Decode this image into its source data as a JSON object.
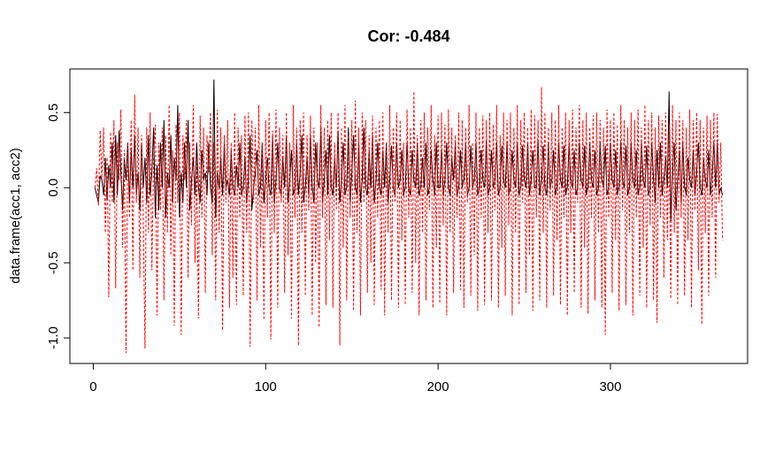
{
  "chart_data": {
    "type": "line",
    "title": "Cor: -0.484",
    "y_label": "data.frame(acc1, acc2)",
    "xlim": [
      -13.56,
      379.56
    ],
    "ylim": [
      -1.17,
      0.79
    ],
    "xticks": [
      0,
      100,
      200,
      300
    ],
    "yticks": [
      {
        "value": -1,
        "label": "-1.0"
      },
      -0.5,
      {
        "value": 0,
        "label": "0.0"
      },
      0.5
    ],
    "x": [
      1,
      2,
      3,
      4,
      5,
      6,
      7,
      8,
      9,
      10,
      11,
      12,
      13,
      14,
      15,
      16,
      17,
      18,
      19,
      20,
      21,
      22,
      23,
      24,
      25,
      26,
      27,
      28,
      29,
      30,
      31,
      32,
      33,
      34,
      35,
      36,
      37,
      38,
      39,
      40,
      41,
      42,
      43,
      44,
      45,
      46,
      47,
      48,
      49,
      50,
      51,
      52,
      53,
      54,
      55,
      56,
      57,
      58,
      59,
      60,
      61,
      62,
      63,
      64,
      65,
      66,
      67,
      68,
      69,
      70,
      71,
      72,
      73,
      74,
      75,
      76,
      77,
      78,
      79,
      80,
      81,
      82,
      83,
      84,
      85,
      86,
      87,
      88,
      89,
      90,
      91,
      92,
      93,
      94,
      95,
      96,
      97,
      98,
      99,
      100,
      101,
      102,
      103,
      104,
      105,
      106,
      107,
      108,
      109,
      110,
      111,
      112,
      113,
      114,
      115,
      116,
      117,
      118,
      119,
      120,
      121,
      122,
      123,
      124,
      125,
      126,
      127,
      128,
      129,
      130,
      131,
      132,
      133,
      134,
      135,
      136,
      137,
      138,
      139,
      140,
      141,
      142,
      143,
      144,
      145,
      146,
      147,
      148,
      149,
      150,
      151,
      152,
      153,
      154,
      155,
      156,
      157,
      158,
      159,
      160,
      161,
      162,
      163,
      164,
      165,
      166,
      167,
      168,
      169,
      170,
      171,
      172,
      173,
      174,
      175,
      176,
      177,
      178,
      179,
      180,
      181,
      182,
      183,
      184,
      185,
      186,
      187,
      188,
      189,
      190,
      191,
      192,
      193,
      194,
      195,
      196,
      197,
      198,
      199,
      200,
      201,
      202,
      203,
      204,
      205,
      206,
      207,
      208,
      209,
      210,
      211,
      212,
      213,
      214,
      215,
      216,
      217,
      218,
      219,
      220,
      221,
      222,
      223,
      224,
      225,
      226,
      227,
      228,
      229,
      230,
      231,
      232,
      233,
      234,
      235,
      236,
      237,
      238,
      239,
      240,
      241,
      242,
      243,
      244,
      245,
      246,
      247,
      248,
      249,
      250,
      251,
      252,
      253,
      254,
      255,
      256,
      257,
      258,
      259,
      260,
      261,
      262,
      263,
      264,
      265,
      266,
      267,
      268,
      269,
      270,
      271,
      272,
      273,
      274,
      275,
      276,
      277,
      278,
      279,
      280,
      281,
      282,
      283,
      284,
      285,
      286,
      287,
      288,
      289,
      290,
      291,
      292,
      293,
      294,
      295,
      296,
      297,
      298,
      299,
      300,
      301,
      302,
      303,
      304,
      305,
      306,
      307,
      308,
      309,
      310,
      311,
      312,
      313,
      314,
      315,
      316,
      317,
      318,
      319,
      320,
      321,
      322,
      323,
      324,
      325,
      326,
      327,
      328,
      329,
      330,
      331,
      332,
      333,
      334,
      335,
      336,
      337,
      338,
      339,
      340,
      341,
      342,
      343,
      344,
      345,
      346,
      347,
      348,
      349,
      350,
      351,
      352,
      353,
      354,
      355,
      356,
      357,
      358,
      359,
      360,
      361,
      362,
      363,
      364,
      365
    ],
    "series": [
      {
        "color": "#000000",
        "dash": false,
        "values": [
          0.0,
          -0.05,
          -0.1,
          0.08,
          0.05,
          -0.05,
          0.2,
          -0.08,
          0.15,
          0.0,
          0.3,
          -0.1,
          0.35,
          -0.05,
          0.38,
          0.1,
          -0.15,
          0.2,
          0.05,
          0.3,
          -0.1,
          0.25,
          0.0,
          0.35,
          -0.05,
          0.1,
          -0.15,
          0.3,
          0.0,
          0.2,
          -0.1,
          0.35,
          -0.05,
          0.1,
          0.4,
          -0.2,
          0.15,
          -0.15,
          0.3,
          0.0,
          0.45,
          -0.2,
          0.1,
          0.0,
          0.35,
          -0.1,
          0.2,
          0.05,
          0.55,
          -0.2,
          0.1,
          -0.1,
          0.3,
          0.0,
          0.45,
          -0.15,
          0.05,
          0.2,
          -0.05,
          0.3,
          0.0,
          -0.1,
          0.25,
          0.05,
          0.1,
          -0.05,
          0.3,
          0.0,
          -0.1,
          0.72,
          -0.2,
          0.1,
          0.0,
          0.2,
          -0.05,
          0.3,
          0.0,
          0.05,
          -0.05,
          0.25,
          0.0,
          -0.05,
          0.15,
          0.0,
          0.3,
          -0.05,
          0.0,
          0.2,
          -0.1,
          0.05,
          0.35,
          -0.15,
          0.0,
          0.1,
          0.25,
          -0.05,
          0.0,
          0.3,
          -0.1,
          0.05,
          0.2,
          0.0,
          -0.05,
          0.35,
          -0.1,
          0.05,
          0.3,
          0.0,
          -0.05,
          0.2,
          0.0,
          0.35,
          -0.1,
          0.05,
          0.25,
          -0.05,
          0.0,
          0.3,
          -0.05,
          0.1,
          0.35,
          -0.1,
          0.0,
          0.2,
          -0.05,
          0.35,
          0.0,
          -0.1,
          0.3,
          0.05,
          0.0,
          0.4,
          -0.1,
          0.05,
          0.25,
          -0.05,
          0.35,
          0.0,
          -0.05,
          0.2,
          0.0,
          0.38,
          -0.1,
          0.05,
          0.3,
          -0.05,
          0.0,
          0.4,
          -0.1,
          0.1,
          0.35,
          0.0,
          -0.05,
          0.3,
          -0.1,
          0.05,
          0.4,
          0.0,
          -0.05,
          0.25,
          0.0,
          0.35,
          -0.1,
          0.05,
          0.3,
          0.0,
          -0.05,
          0.25,
          0.0,
          0.3,
          -0.1,
          0.05,
          0.28,
          0.0,
          -0.05,
          0.3,
          0.0,
          0.05,
          0.25,
          -0.05,
          0.0,
          0.3,
          0.0,
          -0.05,
          0.25,
          0.05,
          0.0,
          0.3,
          -0.05,
          0.0,
          0.2,
          0.0,
          0.3,
          -0.05,
          0.0,
          0.25,
          0.05,
          -0.05,
          0.3,
          0.0,
          0.0,
          0.25,
          -0.05,
          0.05,
          0.3,
          0.0,
          -0.05,
          0.2,
          0.05,
          0.3,
          -0.05,
          0.0,
          0.25,
          0.0,
          0.05,
          0.3,
          -0.05,
          0.0,
          0.28,
          0.0,
          0.05,
          0.3,
          -0.05,
          0.0,
          0.25,
          0.05,
          0.0,
          0.32,
          -0.05,
          0.0,
          0.25,
          0.0,
          0.05,
          0.3,
          -0.05,
          0.0,
          0.28,
          0.05,
          0.0,
          0.3,
          -0.05,
          0.0,
          0.25,
          0.05,
          0.0,
          0.3,
          -0.05,
          0.0,
          0.28,
          0.05,
          0.0,
          0.3,
          -0.05,
          0.05,
          0.25,
          0.0,
          0.0,
          0.32,
          -0.05,
          0.05,
          0.28,
          0.0,
          -0.05,
          0.3,
          0.0,
          0.05,
          0.25,
          -0.05,
          0.0,
          0.3,
          0.05,
          0.0,
          0.28,
          -0.05,
          0.0,
          0.3,
          0.05,
          0.0,
          0.25,
          -0.05,
          0.0,
          0.3,
          0.05,
          0.0,
          0.28,
          -0.05,
          0.0,
          0.3,
          0.05,
          0.0,
          0.25,
          -0.05,
          0.0,
          0.3,
          0.05,
          0.0,
          0.28,
          -0.05,
          0.0,
          0.3,
          0.05,
          0.0,
          0.25,
          -0.05,
          0.0,
          0.3,
          0.05,
          0.0,
          0.28,
          -0.05,
          0.0,
          0.3,
          0.05,
          0.0,
          0.25,
          -0.05,
          0.0,
          0.3,
          0.05,
          0.0,
          0.28,
          -0.05,
          0.0,
          0.3,
          0.05,
          -0.1,
          0.25,
          0.0,
          0.3,
          -0.05,
          0.05,
          0.2,
          0.0,
          0.64,
          -0.22,
          0.1,
          0.3,
          -0.15,
          0.05,
          0.25,
          -0.1,
          0.3,
          0.0,
          -0.05,
          0.2,
          0.05,
          0.0,
          0.25,
          -0.05,
          0.1,
          0.3,
          0.0,
          -0.05,
          0.2,
          0.05,
          0.0,
          0.25,
          -0.05,
          0.1,
          0.3,
          0.0,
          0.3,
          -0.05,
          0.0,
          -0.05
        ]
      },
      {
        "color": "#ff0000",
        "dash": true,
        "values": [
          0.0,
          0.13,
          -0.12,
          0.38,
          0.05,
          0.4,
          -0.3,
          0.2,
          -0.73,
          0.37,
          -0.1,
          0.45,
          -0.67,
          0.3,
          0.05,
          0.52,
          -0.4,
          0.25,
          -1.1,
          0.3,
          -0.2,
          0.45,
          -0.55,
          0.62,
          -0.1,
          0.4,
          -0.6,
          0.35,
          -0.2,
          -1.07,
          0.4,
          -0.3,
          0.5,
          -0.55,
          0.2,
          0.42,
          -0.85,
          0.3,
          -0.15,
          0.4,
          -0.75,
          0.35,
          -0.3,
          0.55,
          -0.45,
          0.25,
          -0.92,
          0.42,
          -0.1,
          0.5,
          -0.98,
          0.35,
          0.05,
          0.45,
          -0.6,
          0.3,
          -0.25,
          0.55,
          -0.5,
          0.2,
          -0.87,
          0.48,
          -0.2,
          0.4,
          -0.7,
          0.35,
          0.1,
          0.5,
          -0.45,
          0.3,
          -0.75,
          0.52,
          -0.3,
          0.4,
          -0.95,
          0.35,
          -0.1,
          0.45,
          -0.8,
          0.3,
          -0.6,
          0.5,
          -0.78,
          0.4,
          -0.2,
          0.35,
          -0.72,
          0.48,
          -0.3,
          0.5,
          -1.06,
          0.45,
          -0.1,
          0.4,
          -0.75,
          0.55,
          -0.4,
          0.3,
          -0.88,
          0.45,
          -0.2,
          0.5,
          -1.01,
          0.38,
          -0.3,
          0.52,
          -0.8,
          0.4,
          -0.1,
          0.35,
          -0.7,
          0.5,
          -0.45,
          0.3,
          -0.87,
          0.55,
          -0.2,
          0.4,
          -1.05,
          0.45,
          -0.3,
          0.5,
          -0.72,
          0.35,
          -0.15,
          0.48,
          -0.85,
          0.4,
          -0.5,
          0.3,
          -0.93,
          0.55,
          -0.2,
          0.4,
          -0.78,
          0.45,
          -0.35,
          0.5,
          -0.8,
          0.3,
          -0.15,
          0.5,
          -1.05,
          0.4,
          -0.4,
          0.55,
          -0.75,
          0.35,
          -0.2,
          0.45,
          -0.82,
          0.58,
          -0.3,
          0.4,
          -0.85,
          0.5,
          -0.1,
          0.45,
          -0.7,
          0.35,
          -0.5,
          0.48,
          -0.78,
          0.4,
          -0.2,
          0.45,
          -0.68,
          0.5,
          -0.85,
          0.3,
          -0.3,
          0.55,
          -0.75,
          0.4,
          -0.1,
          0.5,
          -0.8,
          0.45,
          -0.35,
          0.3,
          -0.78,
          0.52,
          -0.2,
          0.4,
          -0.7,
          0.64,
          -0.5,
          0.35,
          -0.85,
          0.45,
          -0.3,
          0.5,
          -0.75,
          0.4,
          -0.15,
          0.55,
          -0.8,
          0.35,
          -0.4,
          0.48,
          -0.77,
          0.5,
          -0.25,
          0.42,
          -0.85,
          0.52,
          -0.3,
          0.4,
          -0.7,
          0.35,
          -0.2,
          0.5,
          -0.68,
          0.45,
          -0.8,
          0.4,
          -0.1,
          0.55,
          -0.72,
          0.3,
          -0.45,
          0.5,
          -0.82,
          0.4,
          -0.2,
          0.48,
          -0.78,
          0.45,
          -0.3,
          0.5,
          -0.75,
          0.42,
          -0.15,
          0.55,
          -0.8,
          0.35,
          -0.4,
          0.5,
          -0.72,
          0.45,
          -0.25,
          0.5,
          -0.85,
          0.4,
          -0.3,
          0.55,
          -0.78,
          0.45,
          -0.1,
          0.5,
          -0.7,
          0.4,
          -0.45,
          0.52,
          -0.82,
          0.48,
          -0.2,
          0.45,
          -0.75,
          0.67,
          -0.3,
          0.5,
          -0.8,
          0.4,
          -0.15,
          0.5,
          -0.72,
          0.45,
          -0.35,
          0.55,
          -0.78,
          0.4,
          -0.2,
          0.5,
          -0.85,
          0.45,
          -0.3,
          0.52,
          -0.7,
          0.4,
          -0.1,
          0.55,
          -0.8,
          0.45,
          -0.4,
          0.5,
          -0.84,
          0.4,
          -0.2,
          0.48,
          -0.75,
          0.5,
          -0.3,
          0.45,
          -0.8,
          0.4,
          -0.98,
          0.52,
          -0.2,
          0.45,
          -0.7,
          0.5,
          -0.35,
          0.42,
          -0.82,
          0.55,
          -0.15,
          0.45,
          -0.78,
          0.4,
          -0.3,
          0.5,
          -0.85,
          0.45,
          -0.2,
          0.52,
          -0.72,
          0.4,
          -0.4,
          0.55,
          -0.8,
          0.45,
          -0.25,
          0.5,
          -0.75,
          0.4,
          -0.9,
          0.48,
          -0.2,
          0.45,
          -0.6,
          0.5,
          -0.35,
          0.42,
          -0.74,
          0.55,
          -0.3,
          0.45,
          -0.78,
          0.5,
          -0.2,
          0.45,
          -0.72,
          0.4,
          -0.35,
          0.52,
          -0.8,
          0.45,
          -0.15,
          0.5,
          -0.55,
          0.45,
          -0.91,
          0.4,
          -0.3,
          0.48,
          -0.72,
          0.45,
          -0.2,
          0.5,
          -0.6,
          0.49,
          -0.1,
          0.3,
          -0.35
        ]
      }
    ]
  }
}
